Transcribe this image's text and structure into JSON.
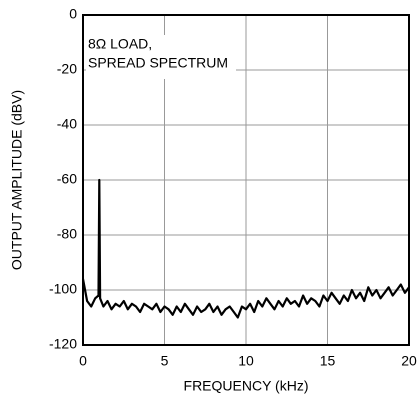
{
  "chart_data": {
    "type": "line",
    "xlabel": "FREQUENCY (kHz)",
    "ylabel": "OUTPUT AMPLITUDE (dBV)",
    "annotation": [
      "8Ω LOAD,",
      "SPREAD SPECTRUM"
    ],
    "xlim": [
      0,
      20
    ],
    "xticks": [
      0,
      5,
      10,
      15,
      20
    ],
    "ylim": [
      -120,
      0
    ],
    "yticks": [
      0,
      -20,
      -40,
      -60,
      -80,
      -100,
      -120
    ],
    "grid": true,
    "series": [
      {
        "color": "#000000",
        "x": [
          0,
          0.25,
          0.5,
          0.75,
          0.95,
          1.0,
          1.05,
          1.25,
          1.5,
          1.75,
          2,
          2.25,
          2.5,
          2.75,
          3,
          3.25,
          3.5,
          3.75,
          4,
          4.25,
          4.5,
          4.75,
          5,
          5.25,
          5.5,
          5.75,
          6,
          6.25,
          6.5,
          6.75,
          7,
          7.25,
          7.5,
          7.75,
          8,
          8.25,
          8.5,
          8.75,
          9,
          9.25,
          9.5,
          9.75,
          10,
          10.25,
          10.5,
          10.75,
          11,
          11.25,
          11.5,
          11.75,
          12,
          12.25,
          12.5,
          12.75,
          13,
          13.25,
          13.5,
          13.75,
          14,
          14.25,
          14.5,
          14.75,
          15,
          15.25,
          15.5,
          15.75,
          16,
          16.25,
          16.5,
          16.75,
          17,
          17.25,
          17.5,
          17.75,
          18,
          18.25,
          18.5,
          18.75,
          19,
          19.25,
          19.5,
          19.75,
          20
        ],
        "values": [
          -96,
          -104,
          -106,
          -103,
          -102,
          -60,
          -103,
          -106,
          -104,
          -107,
          -105,
          -106,
          -104,
          -107,
          -105,
          -106,
          -108,
          -105,
          -106,
          -107,
          -105,
          -108,
          -106,
          -107,
          -109,
          -106,
          -108,
          -105,
          -107,
          -109,
          -106,
          -108,
          -107,
          -105,
          -108,
          -106,
          -109,
          -107,
          -106,
          -108,
          -110,
          -106,
          -107,
          -105,
          -108,
          -104,
          -106,
          -103,
          -105,
          -107,
          -104,
          -106,
          -103,
          -105,
          -104,
          -106,
          -102,
          -105,
          -103,
          -104,
          -106,
          -102,
          -104,
          -101,
          -103,
          -105,
          -102,
          -104,
          -100,
          -103,
          -101,
          -104,
          -99,
          -102,
          -100,
          -103,
          -101,
          -99,
          -102,
          -100,
          -98,
          -101,
          -99
        ]
      }
    ]
  }
}
